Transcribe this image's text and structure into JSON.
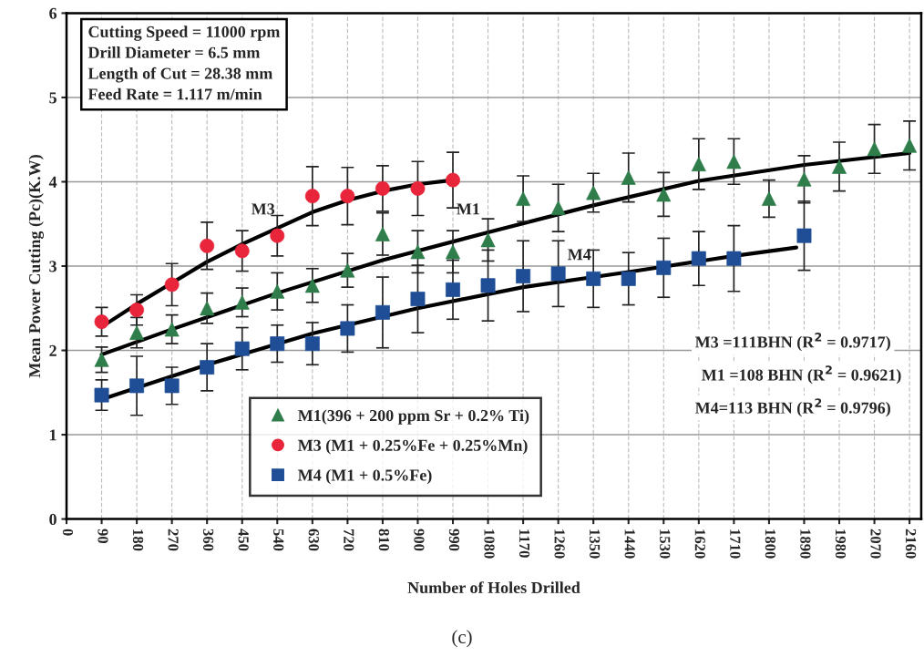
{
  "chart_data": {
    "type": "scatter",
    "xlabel": "Number of Holes Drilled",
    "ylabel": "Mean Power Cutting (Pc)(K.W)",
    "xlim": [
      0,
      2190
    ],
    "ylim": [
      0,
      6
    ],
    "xticks": [
      0,
      90,
      180,
      270,
      360,
      450,
      540,
      630,
      720,
      810,
      900,
      990,
      1080,
      1170,
      1260,
      1350,
      1440,
      1530,
      1620,
      1710,
      1800,
      1890,
      1980,
      2070,
      2160
    ],
    "yticks": [
      0,
      1,
      2,
      3,
      4,
      5,
      6
    ],
    "grid": true,
    "legend": "bottom",
    "series": [
      {
        "name": "M1(396 + 200 ppm Sr + 0.2% Ti)",
        "color": "#2e7d4a",
        "marker": "triangle",
        "x": [
          90,
          180,
          270,
          360,
          450,
          540,
          630,
          720,
          810,
          900,
          990,
          1080,
          1170,
          1260,
          1350,
          1440,
          1530,
          1620,
          1710,
          1800,
          1890,
          1980,
          2070,
          2160
        ],
        "values": [
          1.89,
          2.21,
          2.25,
          2.5,
          2.57,
          2.7,
          2.77,
          2.95,
          3.38,
          3.17,
          3.17,
          3.31,
          3.8,
          3.69,
          3.87,
          4.05,
          3.85,
          4.21,
          4.24,
          3.8,
          4.03,
          4.18,
          4.39,
          4.43
        ],
        "errors": [
          0.15,
          0.18,
          0.17,
          0.18,
          0.17,
          0.22,
          0.2,
          0.2,
          0.25,
          0.25,
          0.25,
          0.25,
          0.27,
          0.28,
          0.23,
          0.29,
          0.26,
          0.3,
          0.27,
          0.22,
          0.28,
          0.29,
          0.29,
          0.29
        ]
      },
      {
        "name": "M3 (M1 + 0.25%Fe + 0.25%Mn)",
        "color": "#e8253a",
        "marker": "circle",
        "x": [
          90,
          180,
          270,
          360,
          450,
          540,
          630,
          720,
          810,
          900,
          990
        ],
        "values": [
          2.34,
          2.48,
          2.78,
          3.24,
          3.18,
          3.36,
          3.83,
          3.83,
          3.92,
          3.92,
          4.02
        ],
        "errors": [
          0.17,
          0.18,
          0.25,
          0.28,
          0.24,
          0.24,
          0.35,
          0.34,
          0.27,
          0.32,
          0.33
        ]
      },
      {
        "name": "M4 (M1 + 0.5%Fe)",
        "color": "#1f4e96",
        "marker": "square",
        "x": [
          90,
          180,
          270,
          360,
          450,
          540,
          630,
          720,
          810,
          900,
          990,
          1080,
          1170,
          1260,
          1350,
          1440,
          1530,
          1620,
          1710,
          1890
        ],
        "values": [
          1.47,
          1.58,
          1.58,
          1.8,
          2.02,
          2.08,
          2.08,
          2.26,
          2.45,
          2.61,
          2.72,
          2.77,
          2.88,
          2.91,
          2.85,
          2.85,
          2.98,
          3.09,
          3.09,
          3.36
        ],
        "errors": [
          0.18,
          0.35,
          0.22,
          0.28,
          0.25,
          0.22,
          0.25,
          0.28,
          0.42,
          0.4,
          0.35,
          0.42,
          0.42,
          0.39,
          0.34,
          0.31,
          0.35,
          0.32,
          0.39,
          0.41
        ]
      },
      {
        "type": "line",
        "color": "#000000",
        "marker": "none",
        "x": [
          90,
          180,
          270,
          360,
          450,
          540,
          630,
          720,
          810,
          900,
          990
        ],
        "values": [
          2.28,
          2.55,
          2.8,
          3.05,
          3.26,
          3.45,
          3.64,
          3.78,
          3.89,
          3.97,
          4.02
        ]
      },
      {
        "type": "line",
        "color": "#000000",
        "marker": "none",
        "x": [
          90,
          270,
          540,
          810,
          1080,
          1350,
          1620,
          1890,
          2160
        ],
        "values": [
          1.95,
          2.25,
          2.68,
          3.07,
          3.4,
          3.72,
          4.01,
          4.2,
          4.34
        ]
      },
      {
        "type": "line",
        "color": "#000000",
        "marker": "none",
        "x": [
          90,
          360,
          630,
          900,
          1170,
          1440,
          1710,
          1870
        ],
        "values": [
          1.42,
          1.83,
          2.2,
          2.5,
          2.75,
          2.93,
          3.12,
          3.22
        ]
      }
    ],
    "annotations": [
      "Cutting Speed = 11000 rpm\nDrill Diameter = 6.5 mm\nLength of Cut = 28.38 mm\nFeed Rate = 1.117 m/min",
      "M3 =111BHN (R$^{2}$ = 0.9717)",
      "M1 =108 BHN (R$^{2}$ = 0.9621)",
      "M4=113 BHN (R$^{2}$ = 0.9796)",
      "(c)",
      "M3",
      "M1",
      "M4"
    ]
  }
}
